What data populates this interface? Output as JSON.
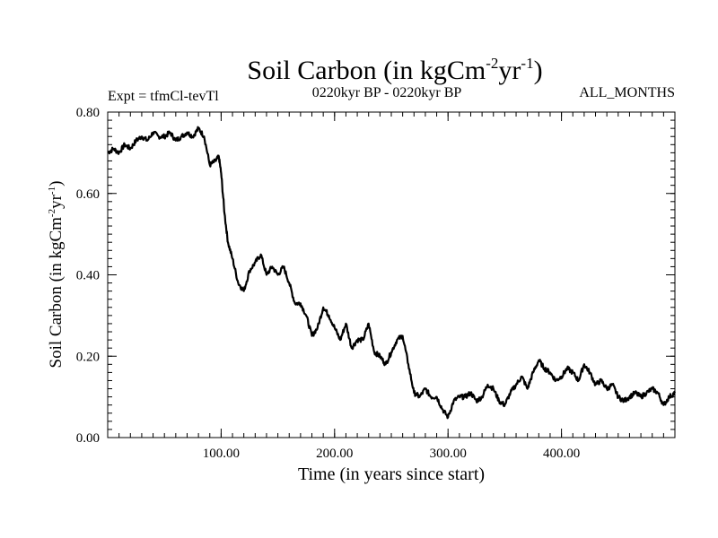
{
  "chart_data": {
    "type": "line",
    "title": "Soil Carbon (in kgCm",
    "title_units": {
      "sup1": "-2",
      "mid": "yr",
      "sup2": "-1",
      "close": ")"
    },
    "experiment_label": "Expt = tfmCl-tevTl",
    "period_label": "0220kyr BP - 0220kyr BP",
    "months_label": "ALL_MONTHS",
    "xlabel": "Time (in years since start)",
    "ylabel": "Soil Carbon (in kgCm",
    "ylabel_units": {
      "sup1": "-2",
      "mid": "yr",
      "sup2": "-1",
      "close": ")"
    },
    "xlim": [
      0,
      500
    ],
    "ylim": [
      0,
      0.8
    ],
    "x_ticks": [
      100,
      200,
      300,
      400
    ],
    "x_tick_labels": [
      "100.00",
      "200.00",
      "300.00",
      "400.00"
    ],
    "y_ticks": [
      0,
      0.2,
      0.4,
      0.6,
      0.8
    ],
    "y_tick_labels": [
      "0.00",
      "0.20",
      "0.40",
      "0.60",
      "0.80"
    ],
    "grid": false,
    "line_color": "#000000",
    "series": [
      {
        "x": [
          0,
          5,
          10,
          15,
          20,
          25,
          30,
          35,
          40,
          45,
          50,
          55,
          60,
          65,
          70,
          75,
          80,
          85,
          90,
          95,
          98,
          100,
          103,
          106,
          110,
          115,
          120,
          125,
          130,
          135,
          140,
          145,
          150,
          155,
          160,
          165,
          170,
          175,
          180,
          185,
          190,
          195,
          200,
          205,
          210,
          215,
          220,
          225,
          230,
          235,
          240,
          245,
          250,
          255,
          260,
          265,
          270,
          275,
          280,
          285,
          290,
          295,
          300,
          305,
          310,
          315,
          320,
          325,
          330,
          335,
          340,
          345,
          350,
          355,
          360,
          365,
          370,
          375,
          380,
          385,
          390,
          395,
          400,
          405,
          410,
          415,
          420,
          425,
          430,
          435,
          440,
          445,
          450,
          455,
          460,
          465,
          470,
          475,
          480,
          485,
          490,
          495,
          500
        ],
        "y": [
          0.7,
          0.71,
          0.7,
          0.72,
          0.71,
          0.73,
          0.74,
          0.73,
          0.75,
          0.74,
          0.74,
          0.75,
          0.73,
          0.74,
          0.75,
          0.74,
          0.76,
          0.74,
          0.67,
          0.68,
          0.69,
          0.65,
          0.55,
          0.48,
          0.44,
          0.38,
          0.36,
          0.41,
          0.43,
          0.45,
          0.4,
          0.42,
          0.4,
          0.42,
          0.38,
          0.33,
          0.33,
          0.3,
          0.25,
          0.27,
          0.32,
          0.3,
          0.27,
          0.24,
          0.28,
          0.22,
          0.24,
          0.24,
          0.28,
          0.21,
          0.2,
          0.18,
          0.21,
          0.24,
          0.25,
          0.18,
          0.11,
          0.1,
          0.12,
          0.1,
          0.1,
          0.07,
          0.05,
          0.09,
          0.1,
          0.1,
          0.11,
          0.09,
          0.1,
          0.13,
          0.12,
          0.09,
          0.08,
          0.11,
          0.13,
          0.15,
          0.12,
          0.16,
          0.19,
          0.17,
          0.16,
          0.14,
          0.15,
          0.17,
          0.16,
          0.14,
          0.18,
          0.16,
          0.13,
          0.14,
          0.12,
          0.13,
          0.1,
          0.09,
          0.1,
          0.11,
          0.1,
          0.11,
          0.12,
          0.11,
          0.08,
          0.1,
          0.11
        ]
      }
    ]
  }
}
